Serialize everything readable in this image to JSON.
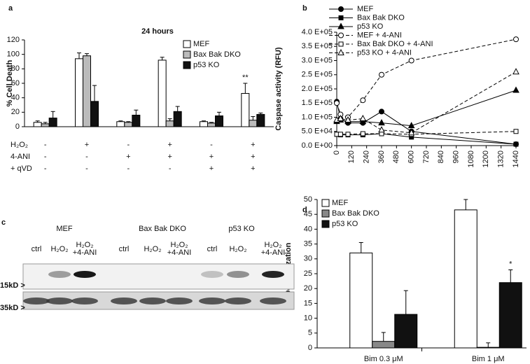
{
  "chart_data": [
    {
      "type": "bar",
      "panel": "a",
      "title": "24 hours",
      "ylabel": "% Cell Death",
      "ylim": [
        0,
        120
      ],
      "yticks": [
        0,
        20,
        40,
        60,
        80,
        100,
        120
      ],
      "legend": "upper right",
      "series": [
        {
          "name": "MEF",
          "color": "#ffffff",
          "values": [
            6,
            94,
            7,
            92,
            7,
            46
          ],
          "errors": [
            2,
            8,
            1,
            4,
            1,
            14
          ]
        },
        {
          "name": "Bax Bak DKO",
          "color": "#bbbbbb",
          "values": [
            4,
            98,
            6,
            8,
            5,
            9
          ],
          "errors": [
            2,
            3,
            1,
            3,
            1,
            5
          ]
        },
        {
          "name": "p53 KO",
          "color": "#111111",
          "values": [
            12,
            35,
            16,
            21,
            15,
            17
          ],
          "errors": [
            9,
            22,
            7,
            7,
            5,
            2
          ]
        }
      ],
      "conditions": [
        {
          "label": "H₂O₂",
          "signs": [
            "-",
            "+",
            "-",
            "+",
            "-",
            "+"
          ]
        },
        {
          "label": "4-ANI",
          "signs": [
            "-",
            "-",
            "+",
            "+",
            "+",
            "+"
          ]
        },
        {
          "label": "+ qVD",
          "signs": [
            "-",
            "-",
            "-",
            "-",
            "+",
            "+"
          ]
        }
      ],
      "annotations": [
        {
          "text": "**"
        }
      ]
    },
    {
      "type": "line",
      "panel": "b",
      "ylabel": "Caspase activity (RFU)",
      "legend": "upper left",
      "xlim": [
        0,
        1440
      ],
      "xticks": [
        0,
        120,
        240,
        360,
        480,
        600,
        720,
        840,
        960,
        1080,
        1200,
        1320,
        1440
      ],
      "ylim": [
        0,
        400000
      ],
      "yticks": [
        {
          "value": 0,
          "label": "0.0 E+00"
        },
        {
          "value": 50000,
          "label": "5.0 E+04"
        },
        {
          "value": 100000,
          "label": "1.0 E+05"
        },
        {
          "value": 150000,
          "label": "1.5 E+05"
        },
        {
          "value": 200000,
          "label": "2.0 E+05"
        },
        {
          "value": 250000,
          "label": "2.5 E+05"
        },
        {
          "value": 300000,
          "label": "3.0 E+05"
        },
        {
          "value": 350000,
          "label": "3.5 E+05"
        },
        {
          "value": 400000,
          "label": "4.0 E+05"
        }
      ],
      "x": [
        0,
        30,
        90,
        210,
        360,
        600,
        1440
      ],
      "series": [
        {
          "name": "MEF",
          "color": "#000000",
          "marker": "circle",
          "filled": true,
          "style": "solid",
          "values": [
            155000,
            95000,
            80000,
            80000,
            120000,
            50000,
            5000
          ]
        },
        {
          "name": "Bax Bak DKO",
          "color": "#000000",
          "marker": "square",
          "filled": true,
          "style": "solid",
          "values": [
            40000,
            38000,
            38000,
            38000,
            42000,
            30000,
            5000
          ]
        },
        {
          "name": "p53 KO",
          "color": "#000000",
          "marker": "triangle",
          "filled": true,
          "style": "solid",
          "values": [
            85000,
            90000,
            85000,
            85000,
            80000,
            70000,
            195000
          ]
        },
        {
          "name": "MEF + 4-ANI",
          "color": "#000000",
          "marker": "circle",
          "filled": false,
          "style": "dashed",
          "values": [
            150000,
            110000,
            100000,
            160000,
            250000,
            300000,
            375000
          ]
        },
        {
          "name": "Bax Bak DKO + 4-ANI",
          "color": "#000000",
          "marker": "square",
          "filled": false,
          "style": "dashed",
          "values": [
            40000,
            40000,
            40000,
            42000,
            42000,
            40000,
            50000
          ]
        },
        {
          "name": "p53 KO + 4-ANI",
          "color": "#000000",
          "marker": "triangle",
          "filled": false,
          "style": "dashed",
          "values": [
            90000,
            95000,
            90000,
            95000,
            55000,
            45000,
            260000
          ]
        }
      ]
    },
    {
      "type": "bar",
      "panel": "d",
      "ylabel": "% Depolarization",
      "ylim": [
        0,
        50
      ],
      "yticks": [
        0,
        5,
        10,
        15,
        20,
        25,
        30,
        35,
        40,
        45,
        50
      ],
      "legend": "upper left",
      "categories": [
        "Bim 0.3 μM",
        "Bim 1 μM"
      ],
      "series": [
        {
          "name": "MEF",
          "color": "#ffffff",
          "values": [
            32,
            46.5
          ],
          "errors": [
            3.5,
            3.5
          ]
        },
        {
          "name": "Bax Bak DKO",
          "color": "#888888",
          "values": [
            2.2,
            0.2
          ],
          "errors": [
            3,
            1.5
          ]
        },
        {
          "name": "p53 KO",
          "color": "#111111",
          "values": [
            11.3,
            22
          ],
          "errors": [
            8,
            4.3
          ]
        }
      ],
      "annotations": [
        {
          "text": "*"
        }
      ]
    }
  ],
  "blot": {
    "panel": "c",
    "groups": [
      "MEF",
      "Bax Bak DKO",
      "p53 KO"
    ],
    "lanes": [
      [
        "ctrl"
      ],
      [
        "H₂O₂"
      ],
      [
        "H₂O₂",
        "+4-ANI"
      ],
      [
        "ctrl"
      ],
      [
        "H₂O₂"
      ],
      [
        "H₂O₂",
        "+4-ANI"
      ],
      [
        "ctrl"
      ],
      [
        "H₂O₂"
      ],
      [
        "H₂O₂",
        "+4-ANI"
      ]
    ],
    "markers": [
      "15kD >",
      "35kD >"
    ]
  }
}
